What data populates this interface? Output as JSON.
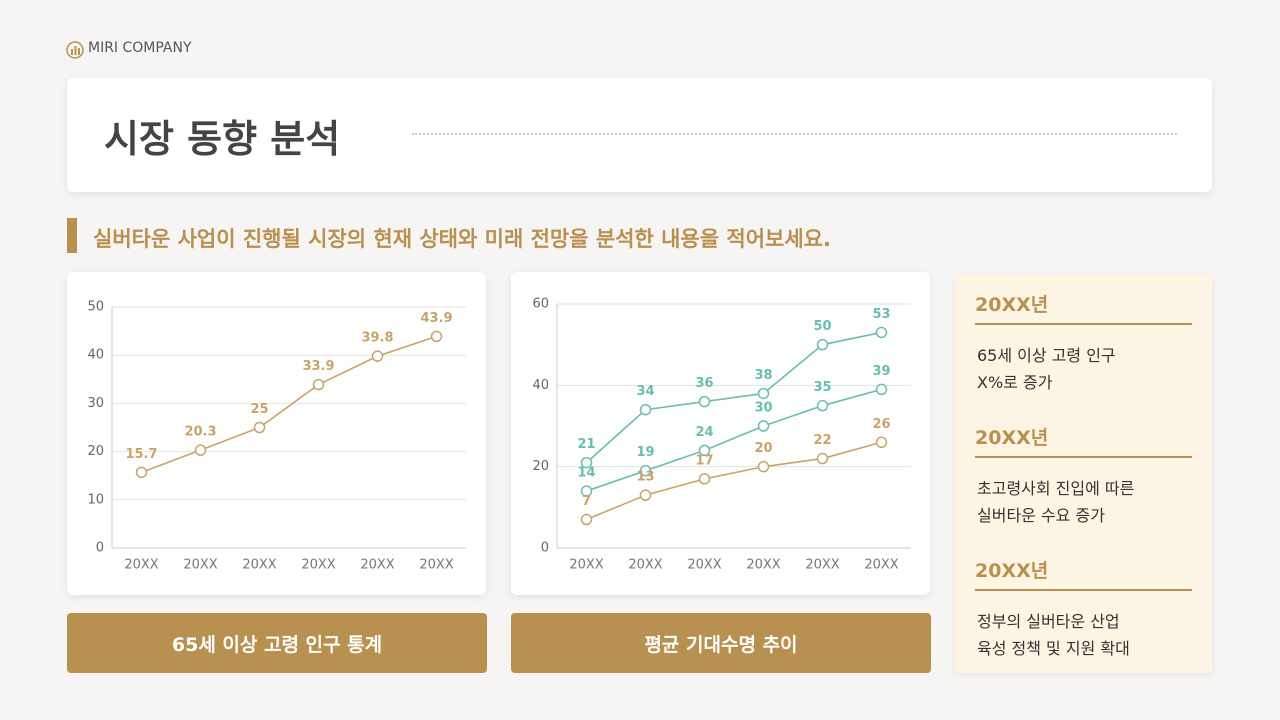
{
  "brand": "MIRI COMPANY",
  "title": "시장 동향 분석",
  "subtitle": "실버타운 사업이 진행될 시장의 현재 상태와 미래 전망을 분석한 내용을 적어보세요.",
  "chart_data": [
    {
      "type": "line",
      "title": "65세 이상 고령 인구 통계",
      "categories": [
        "20XX",
        "20XX",
        "20XX",
        "20XX",
        "20XX",
        "20XX"
      ],
      "series": [
        {
          "color": "#c9a36a",
          "values": [
            15.7,
            20.3,
            25,
            33.9,
            39.8,
            43.9
          ]
        }
      ],
      "ylim": [
        0,
        50
      ],
      "yticks": [
        0,
        10,
        20,
        30,
        40,
        50
      ],
      "grid": true
    },
    {
      "type": "line",
      "title": "평균 기대수명 추이",
      "categories": [
        "20XX",
        "20XX",
        "20XX",
        "20XX",
        "20XX",
        "20XX"
      ],
      "series": [
        {
          "color": "#6bbcb2",
          "values": [
            21,
            34,
            36,
            38,
            50,
            53
          ]
        },
        {
          "color": "#6bbcb2",
          "values": [
            14,
            19,
            24,
            30,
            35,
            39
          ]
        },
        {
          "color": "#c9a36a",
          "values": [
            7,
            13,
            17,
            20,
            22,
            26
          ]
        }
      ],
      "ylim": [
        0,
        60
      ],
      "yticks": [
        0,
        20,
        40,
        60
      ],
      "grid": true
    }
  ],
  "notes": [
    {
      "heading": "20XX년",
      "lines": [
        "65세 이상 고령 인구",
        "X%로 증가"
      ]
    },
    {
      "heading": "20XX년",
      "lines": [
        "초고령사회 진입에 따른",
        "실버타운 수요 증가"
      ]
    },
    {
      "heading": "20XX년",
      "lines": [
        "정부의 실버타운 산업",
        "육성 정책 및 지원 확대"
      ]
    }
  ]
}
